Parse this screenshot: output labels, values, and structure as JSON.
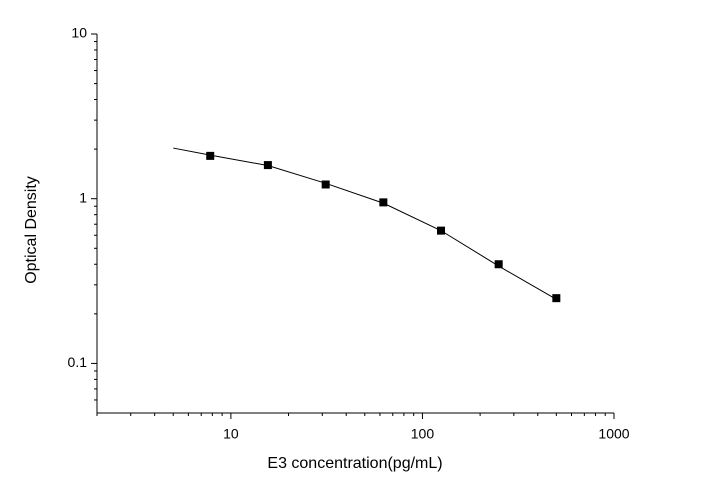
{
  "chart_data": {
    "type": "scatter",
    "xlabel": "E3 concentration(pg/mL)",
    "ylabel": "Optical Density",
    "xscale": "log",
    "yscale": "log",
    "xlim": [
      2,
      1000
    ],
    "ylim": [
      0.05,
      10
    ],
    "xticks": [
      10,
      100,
      1000
    ],
    "yticks": [
      0.1,
      1,
      10
    ],
    "xminorticks": [
      2,
      3,
      4,
      5,
      6,
      7,
      8,
      9,
      20,
      30,
      40,
      50,
      60,
      70,
      80,
      90,
      200,
      300,
      400,
      500,
      600,
      700,
      800,
      900
    ],
    "yminorticks": [
      0.06,
      0.07,
      0.08,
      0.09,
      0.2,
      0.3,
      0.4,
      0.5,
      0.6,
      0.7,
      0.8,
      0.9,
      2,
      3,
      4,
      5,
      6,
      7,
      8,
      9
    ],
    "series": [
      {
        "type": "scatter",
        "color": "#000000",
        "x": [
          7.8,
          15.6,
          31.25,
          62.5,
          125,
          250,
          500
        ],
        "values": [
          1.82,
          1.6,
          1.22,
          0.95,
          0.64,
          0.4,
          0.249
        ]
      },
      {
        "type": "line",
        "color": "#000000",
        "x": [
          5,
          7.8,
          15.6,
          31.25,
          62.5,
          125,
          250,
          500
        ],
        "values": [
          2.03,
          1.84,
          1.59,
          1.24,
          0.94,
          0.64,
          0.39,
          0.245
        ]
      }
    ]
  }
}
